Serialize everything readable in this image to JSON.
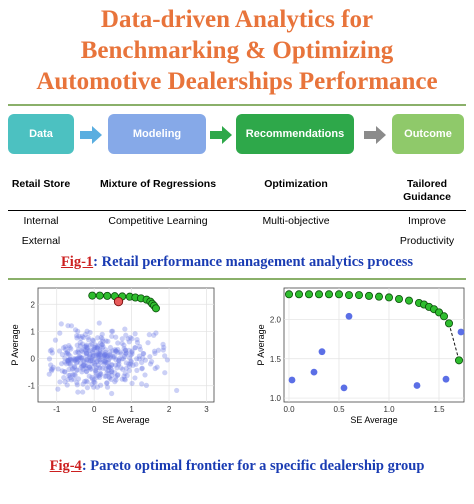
{
  "title": {
    "line1": "Data-driven Analytics for",
    "line2": "Benchmarking & Optimizing",
    "line3": "Automotive Dealerships Performance"
  },
  "process": {
    "steps": [
      {
        "box": "Data",
        "label": "Retail Store",
        "subs": [
          "Internal",
          "External"
        ],
        "color": "#4cc1c1"
      },
      {
        "box": "Modeling",
        "label": "Mixture of Regressions",
        "subs": [
          "Competitive Learning"
        ],
        "color": "#86a9e8"
      },
      {
        "box": "Recommendations",
        "label": "Optimization",
        "subs": [
          "Multi-objective"
        ],
        "color": "#2ea84a"
      },
      {
        "box": "Outcome",
        "label": "Tailored\nGuidance",
        "subs": [
          "Improve",
          "Productivity"
        ],
        "color": "#8fc96a"
      }
    ]
  },
  "fig1": {
    "label": "Fig-1",
    "text": ": Retail performance management analytics process"
  },
  "fig4": {
    "label": "Fig-4",
    "text": ": Pareto optimal frontier for a specific dealership group"
  },
  "chart_data": [
    {
      "type": "scatter",
      "xlabel": "SE Average",
      "ylabel": "P Average",
      "xlim": [
        -1.5,
        3.2
      ],
      "ylim": [
        -1.6,
        2.6
      ],
      "xticks": [
        -1,
        0,
        1,
        2,
        3
      ],
      "yticks": [
        -1,
        0,
        1,
        2
      ],
      "grid": true,
      "series": [
        {
          "role": "cloud",
          "color": "#6b78e6",
          "points": "approx. 400 points scattered around (0, 0), spread x -1.2..2.8, y -1.3..1.3"
        },
        {
          "role": "frontier",
          "color": "#2ebd2e",
          "x": [
            -0.05,
            0.15,
            0.35,
            0.55,
            0.75,
            0.95,
            1.1,
            1.25,
            1.4,
            1.5,
            1.55,
            1.6,
            1.65
          ],
          "y": [
            2.32,
            2.32,
            2.31,
            2.3,
            2.29,
            2.28,
            2.25,
            2.22,
            2.17,
            2.1,
            2.02,
            1.95,
            1.85
          ]
        },
        {
          "role": "highlight",
          "color": "#e85a5a",
          "x": [
            0.65
          ],
          "y": [
            2.1
          ]
        }
      ]
    },
    {
      "type": "scatter",
      "xlabel": "SE Average",
      "ylabel": "P Average",
      "xlim": [
        -0.05,
        1.75
      ],
      "ylim": [
        0.95,
        2.4
      ],
      "xticks": [
        0.0,
        0.5,
        1.0,
        1.5
      ],
      "yticks": [
        1.0,
        1.5,
        2.0
      ],
      "grid": true,
      "series": [
        {
          "role": "frontier",
          "color": "#2ebd2e",
          "x": [
            0.0,
            0.1,
            0.2,
            0.3,
            0.4,
            0.5,
            0.6,
            0.7,
            0.8,
            0.9,
            1.0,
            1.1,
            1.2,
            1.3,
            1.35,
            1.4,
            1.45,
            1.5,
            1.55,
            1.6,
            1.7
          ],
          "y": [
            2.32,
            2.32,
            2.32,
            2.32,
            2.32,
            2.32,
            2.31,
            2.31,
            2.3,
            2.29,
            2.28,
            2.26,
            2.24,
            2.21,
            2.19,
            2.16,
            2.13,
            2.09,
            2.04,
            1.95,
            1.48
          ]
        },
        {
          "role": "others",
          "color": "#5b6fe6",
          "x": [
            0.03,
            0.25,
            0.33,
            0.55,
            0.6,
            1.28,
            1.57,
            1.72
          ],
          "y": [
            1.23,
            1.33,
            1.59,
            1.13,
            2.04,
            1.16,
            1.24,
            1.84
          ]
        }
      ]
    }
  ]
}
